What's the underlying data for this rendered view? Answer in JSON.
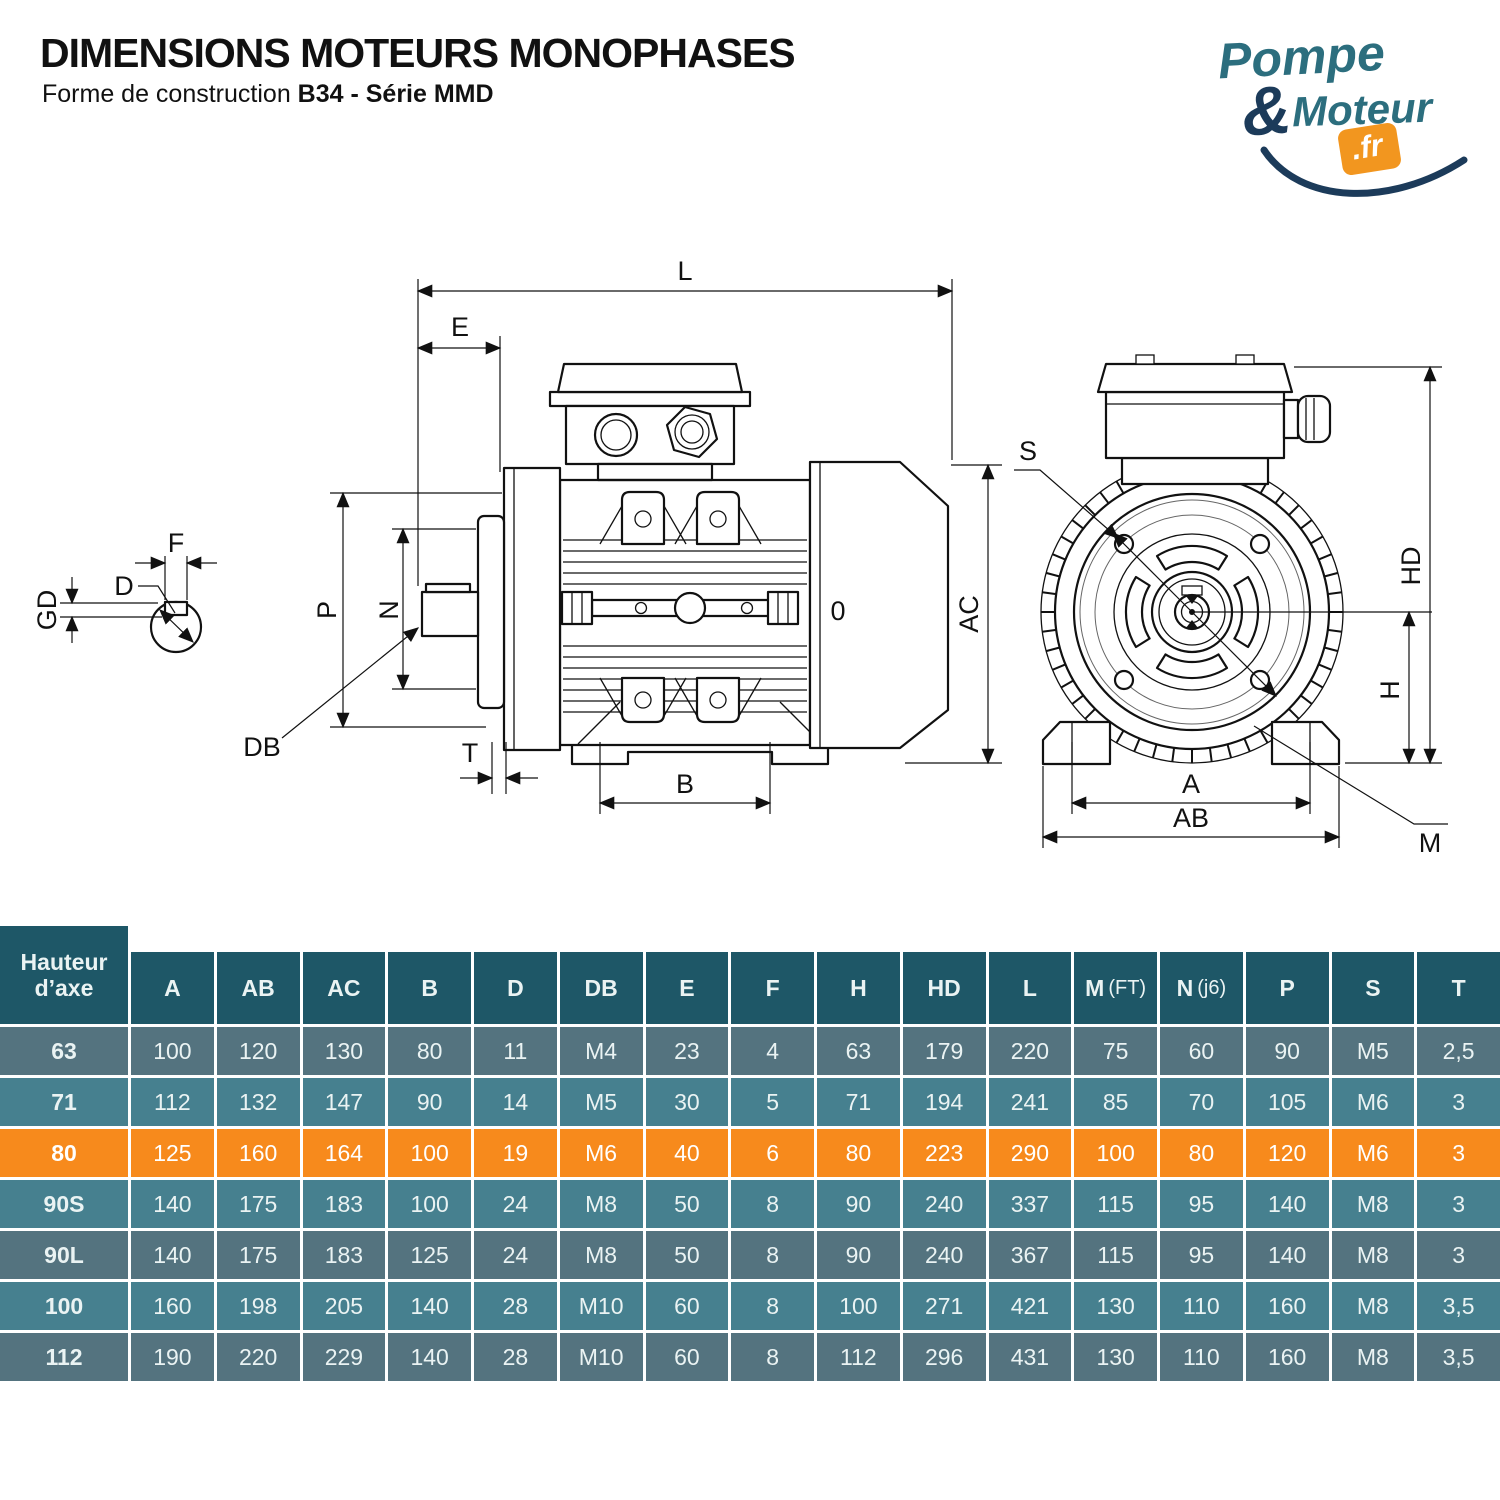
{
  "header": {
    "title": "DIMENSIONS MOTEURS MONOPHASES",
    "subtitle_prefix": "Forme de construction ",
    "subtitle_bold": "B34 - Série MMD"
  },
  "logo": {
    "word1": "Pompe",
    "amp": "&",
    "word2": "Moteur",
    "tld": ".fr",
    "teal": "#2c6e7e",
    "navy": "#1c3b5a",
    "orange": "#f2961f"
  },
  "diagram": {
    "side": {
      "L": "L",
      "E": "E",
      "F": "F",
      "D": "D",
      "GD": "GD",
      "P": "P",
      "N": "N",
      "DB": "DB",
      "T": "T",
      "B": "B",
      "zero": "0",
      "AC": "AC"
    },
    "front": {
      "S": "S",
      "HD": "HD",
      "H": "H",
      "A": "A",
      "AB": "AB",
      "M": "M"
    }
  },
  "table": {
    "first_header": "Hauteur d’axe",
    "columns": [
      "A",
      "AB",
      "AC",
      "B",
      "D",
      "DB",
      "E",
      "F",
      "H",
      "HD",
      "L",
      "M (FT)",
      "N (j6)",
      "P",
      "S",
      "T"
    ],
    "rows": [
      {
        "label": "63",
        "highlight": false,
        "values": [
          "100",
          "120",
          "130",
          "80",
          "11",
          "M4",
          "23",
          "4",
          "63",
          "179",
          "220",
          "75",
          "60",
          "90",
          "M5",
          "2,5"
        ]
      },
      {
        "label": "71",
        "highlight": false,
        "values": [
          "112",
          "132",
          "147",
          "90",
          "14",
          "M5",
          "30",
          "5",
          "71",
          "194",
          "241",
          "85",
          "70",
          "105",
          "M6",
          "3"
        ]
      },
      {
        "label": "80",
        "highlight": true,
        "values": [
          "125",
          "160",
          "164",
          "100",
          "19",
          "M6",
          "40",
          "6",
          "80",
          "223",
          "290",
          "100",
          "80",
          "120",
          "M6",
          "3"
        ]
      },
      {
        "label": "90S",
        "highlight": false,
        "values": [
          "140",
          "175",
          "183",
          "100",
          "24",
          "M8",
          "50",
          "8",
          "90",
          "240",
          "337",
          "115",
          "95",
          "140",
          "M8",
          "3"
        ]
      },
      {
        "label": "90L",
        "highlight": false,
        "values": [
          "140",
          "175",
          "183",
          "125",
          "24",
          "M8",
          "50",
          "8",
          "90",
          "240",
          "367",
          "115",
          "95",
          "140",
          "M8",
          "3"
        ]
      },
      {
        "label": "100",
        "highlight": false,
        "values": [
          "160",
          "198",
          "205",
          "140",
          "28",
          "M10",
          "60",
          "8",
          "100",
          "271",
          "421",
          "130",
          "110",
          "160",
          "M8",
          "3,5"
        ]
      },
      {
        "label": "112",
        "highlight": false,
        "values": [
          "190",
          "220",
          "229",
          "140",
          "28",
          "M10",
          "60",
          "8",
          "112",
          "296",
          "431",
          "130",
          "110",
          "160",
          "M8",
          "3,5"
        ]
      }
    ],
    "colors": {
      "header_bg": "#1e5767",
      "row_dark": "#54737f",
      "row_light": "#46808f",
      "row_highlight": "#f78a1c",
      "text": "#eaf3f3"
    }
  }
}
